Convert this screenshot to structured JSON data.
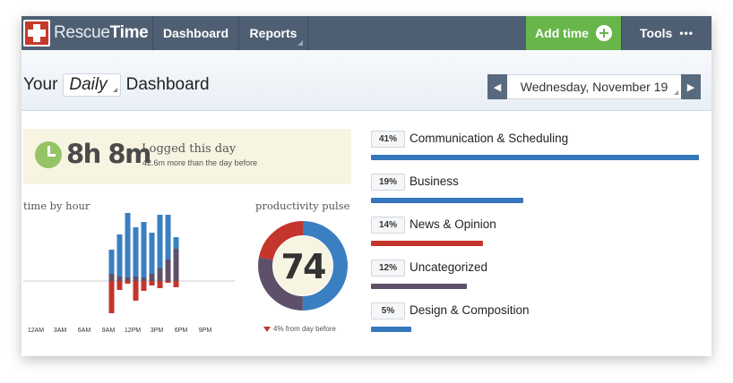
{
  "nav": {
    "logo_part1": "Rescue",
    "logo_part2": "Time",
    "dashboard": "Dashboard",
    "reports": "Reports",
    "add_time": "Add time",
    "tools": "Tools",
    "tools_dots": "•••"
  },
  "header": {
    "prefix": "Your",
    "period": "Daily",
    "suffix": "Dashboard",
    "date": "Wednesday, November 19",
    "prev_arrow": "◀",
    "next_arrow": "▶"
  },
  "logged": {
    "time": "8h 8m",
    "label": "Logged this day",
    "sub": "42.6m more than the day before"
  },
  "hour_chart": {
    "title": "time by hour",
    "tick_labels": [
      "12AM",
      "3AM",
      "6AM",
      "9AM",
      "12PM",
      "3PM",
      "6PM",
      "9PM"
    ],
    "colors": {
      "productive": "#3a7fc1",
      "neutral": "#5d5068",
      "distracting": "#c4352b"
    },
    "bars": [
      {
        "hour": 9.5,
        "productive": 27,
        "neutral": 8,
        "distracting": 36
      },
      {
        "hour": 10.5,
        "productive": 47,
        "neutral": 5,
        "distracting": 10
      },
      {
        "hour": 11.5,
        "productive": 72,
        "neutral": 4,
        "distracting": 3
      },
      {
        "hour": 12.5,
        "productive": 55,
        "neutral": 5,
        "distracting": 22
      },
      {
        "hour": 13.5,
        "productive": 62,
        "neutral": 4,
        "distracting": 11
      },
      {
        "hour": 14.5,
        "productive": 46,
        "neutral": 8,
        "distracting": 5
      },
      {
        "hour": 15.5,
        "productive": 60,
        "neutral": 14,
        "distracting": 8
      },
      {
        "hour": 16.5,
        "productive": 50,
        "neutral": 24,
        "distracting": 2
      },
      {
        "hour": 17.5,
        "productive": 13,
        "neutral": 36,
        "distracting": 7
      }
    ]
  },
  "pulse": {
    "title": "productivity pulse",
    "score": "74",
    "foot": "4% from day before",
    "chart_data": {
      "type": "pie",
      "values": [
        50,
        28,
        22
      ],
      "colors": [
        "#3a7fc1",
        "#5d5068",
        "#c4352b"
      ]
    }
  },
  "categories": [
    {
      "pct": "41%",
      "name": "Communication & Scheduling",
      "value": 41,
      "color": "#3576bd"
    },
    {
      "pct": "19%",
      "name": "Business",
      "value": 19,
      "color": "#3576bd"
    },
    {
      "pct": "14%",
      "name": "News & Opinion",
      "value": 14,
      "color": "#c4352b"
    },
    {
      "pct": "12%",
      "name": "Uncategorized",
      "value": 12,
      "color": "#5d5068"
    },
    {
      "pct": "5%",
      "name": "Design & Composition",
      "value": 5,
      "color": "#3576bd"
    }
  ]
}
